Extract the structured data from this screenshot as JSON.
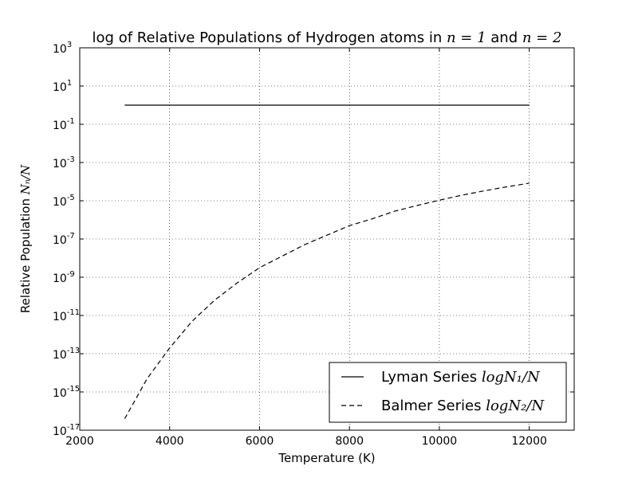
{
  "chart_data": {
    "type": "line",
    "title": {
      "prefix": "log of Relative Populations of Hydrogen atoms in ",
      "math1": "n = 1",
      "mid": " and ",
      "math2": "n = 2"
    },
    "xlabel": "Temperature (K)",
    "ylabel": {
      "prefix": "Relative Population ",
      "math": "Nₙ/N"
    },
    "xlim": [
      2000,
      13000
    ],
    "ylim_log10": [
      -17,
      3
    ],
    "scale_y": "log",
    "grid": true,
    "legend_position": "lower-right",
    "x_ticks": [
      {
        "value": 2000,
        "label": "2000"
      },
      {
        "value": 4000,
        "label": "4000"
      },
      {
        "value": 6000,
        "label": "6000"
      },
      {
        "value": 8000,
        "label": "8000"
      },
      {
        "value": 10000,
        "label": "10000"
      },
      {
        "value": 12000,
        "label": "12000"
      }
    ],
    "y_ticks": [
      {
        "exp": 3,
        "base": "10",
        "label": "3"
      },
      {
        "exp": 1,
        "base": "10",
        "label": "1"
      },
      {
        "exp": -1,
        "base": "10",
        "label": "-1"
      },
      {
        "exp": -3,
        "base": "10",
        "label": "-3"
      },
      {
        "exp": -5,
        "base": "10",
        "label": "-5"
      },
      {
        "exp": -7,
        "base": "10",
        "label": "-7"
      },
      {
        "exp": -9,
        "base": "10",
        "label": "-9"
      },
      {
        "exp": -11,
        "base": "10",
        "label": "-11"
      },
      {
        "exp": -13,
        "base": "10",
        "label": "-13"
      },
      {
        "exp": -15,
        "base": "10",
        "label": "-15"
      },
      {
        "exp": -17,
        "base": "10",
        "label": "-17"
      }
    ],
    "series": [
      {
        "name": "Lyman Series",
        "legend_math": "logN₁/N",
        "style": "solid",
        "color": "#000000",
        "x": [
          3000,
          4000,
          5000,
          6000,
          7000,
          8000,
          9000,
          10000,
          11000,
          12000
        ],
        "log10_y": [
          0,
          0,
          0,
          0,
          0,
          0,
          0,
          0,
          0,
          0
        ]
      },
      {
        "name": "Balmer Series",
        "legend_math": "logN₂/N",
        "style": "dashed",
        "color": "#000000",
        "x": [
          3000,
          3500,
          4000,
          4500,
          5000,
          5500,
          6000,
          6500,
          7000,
          7500,
          8000,
          8500,
          9000,
          9500,
          10000,
          10500,
          11000,
          11500,
          12000
        ],
        "log10_y": [
          -16.4,
          -14.3,
          -12.7,
          -11.3,
          -10.2,
          -9.3,
          -8.5,
          -7.9,
          -7.3,
          -6.8,
          -6.3,
          -5.95,
          -5.55,
          -5.25,
          -4.97,
          -4.71,
          -4.48,
          -4.27,
          -4.08
        ]
      }
    ]
  }
}
